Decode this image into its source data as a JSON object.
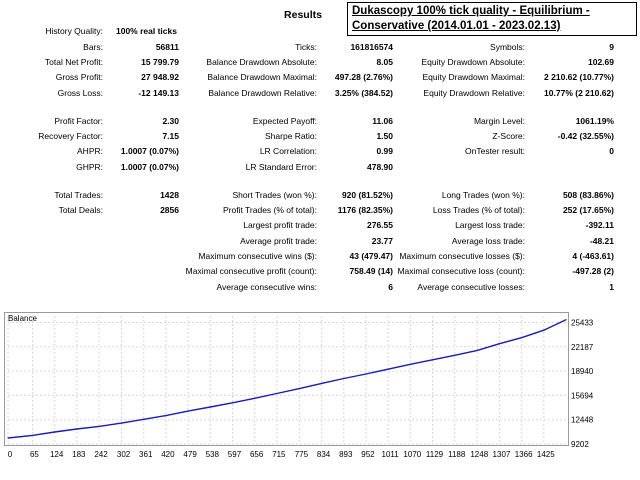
{
  "report": {
    "title": "Results",
    "banner": "Dukascopy 100% tick quality - Equilibrium - Conservative (2014.01.01 - 2023.02.13)"
  },
  "stats": [
    {
      "label": "History Quality:",
      "value": "100% real ticks"
    },
    {
      "label": "Bars:",
      "value": "56811"
    },
    {
      "label": "Ticks:",
      "value": "161816574"
    },
    {
      "label": "Symbols:",
      "value": "9"
    },
    {
      "label": "Total Net Profit:",
      "value": "15 799.79"
    },
    {
      "label": "Balance Drawdown Absolute:",
      "value": "8.05"
    },
    {
      "label": "Equity Drawdown Absolute:",
      "value": "102.69"
    },
    {
      "label": "Gross Profit:",
      "value": "27 948.92"
    },
    {
      "label": "Balance Drawdown Maximal:",
      "value": "497.28 (2.76%)"
    },
    {
      "label": "Equity Drawdown Maximal:",
      "value": "2 210.62 (10.77%)"
    },
    {
      "label": "Gross Loss:",
      "value": "-12 149.13"
    },
    {
      "label": "Balance Drawdown Relative:",
      "value": "3.25% (384.52)"
    },
    {
      "label": "Equity Drawdown Relative:",
      "value": "10.77% (2 210.62)"
    },
    {
      "label": "Profit Factor:",
      "value": "2.30"
    },
    {
      "label": "Expected Payoff:",
      "value": "11.06"
    },
    {
      "label": "Margin Level:",
      "value": "1061.19%"
    },
    {
      "label": "Recovery Factor:",
      "value": "7.15"
    },
    {
      "label": "Sharpe Ratio:",
      "value": "1.50"
    },
    {
      "label": "Z-Score:",
      "value": "-0.42 (32.55%)"
    },
    {
      "label": "AHPR:",
      "value": "1.0007 (0.07%)"
    },
    {
      "label": "LR Correlation:",
      "value": "0.99"
    },
    {
      "label": "OnTester result:",
      "value": "0"
    },
    {
      "label": "GHPR:",
      "value": "1.0007 (0.07%)"
    },
    {
      "label": "LR Standard Error:",
      "value": "478.90"
    },
    {
      "label": "Total Trades:",
      "value": "1428"
    },
    {
      "label": "Short Trades (won %):",
      "value": "920 (81.52%)"
    },
    {
      "label": "Long Trades (won %):",
      "value": "508 (83.86%)"
    },
    {
      "label": "Total Deals:",
      "value": "2856"
    },
    {
      "label": "Profit Trades (% of total):",
      "value": "1176 (82.35%)"
    },
    {
      "label": "Loss Trades (% of total):",
      "value": "252 (17.65%)"
    },
    {
      "label": "Largest profit trade:",
      "value": "276.55"
    },
    {
      "label": "Largest loss trade:",
      "value": "-392.11"
    },
    {
      "label": "Average profit trade:",
      "value": "23.77"
    },
    {
      "label": "Average loss trade:",
      "value": "-48.21"
    },
    {
      "label": "Maximum consecutive wins ($):",
      "value": "43 (479.47)"
    },
    {
      "label": "Maximum consecutive losses ($):",
      "value": "4 (-463.61)"
    },
    {
      "label": "Maximal consecutive profit (count):",
      "value": "758.49 (14)"
    },
    {
      "label": "Maximal consecutive loss (count):",
      "value": "-497.28 (2)"
    },
    {
      "label": "Average consecutive wins:",
      "value": "6"
    },
    {
      "label": "Average consecutive losses:",
      "value": "1"
    }
  ],
  "chart_data": {
    "type": "line",
    "title": "Balance",
    "series_color": "#1c1cb4",
    "grid": true,
    "x_ticks": [
      0,
      65,
      124,
      183,
      242,
      302,
      361,
      420,
      479,
      538,
      597,
      656,
      715,
      775,
      834,
      893,
      952,
      1011,
      1070,
      1129,
      1188,
      1248,
      1307,
      1366,
      1425
    ],
    "y_ticks": [
      9202,
      12448,
      15694,
      18940,
      22187,
      25433
    ],
    "xlim": [
      0,
      1484
    ],
    "ylim": [
      9202,
      26300
    ],
    "series": [
      {
        "x": [
          0,
          65,
          124,
          183,
          242,
          302,
          361,
          420,
          479,
          538,
          597,
          656,
          715,
          775,
          834,
          893,
          952,
          1011,
          1070,
          1129,
          1188,
          1248,
          1307,
          1366,
          1425,
          1484
        ],
        "values": [
          10000,
          10350,
          10800,
          11200,
          11550,
          12000,
          12500,
          13000,
          13600,
          14150,
          14700,
          15300,
          15950,
          16600,
          17300,
          17950,
          18550,
          19200,
          19850,
          20450,
          21050,
          21700,
          22600,
          23400,
          24400,
          25800
        ]
      }
    ]
  }
}
